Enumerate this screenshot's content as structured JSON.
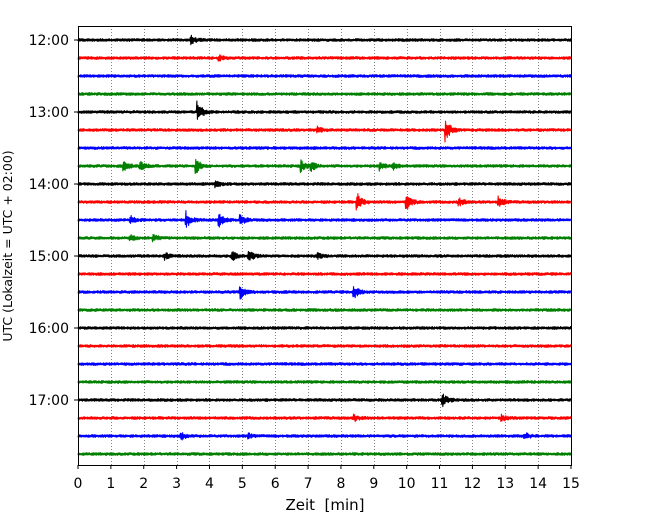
{
  "chart_data": {
    "type": "line",
    "subtype": "helicorder",
    "title": "",
    "xlabel": "Zeit  [min]",
    "ylabel": "UTC (Lokalzeit = UTC + 02:00)",
    "xlim": [
      0,
      15
    ],
    "x_ticks": [
      0,
      1,
      2,
      3,
      4,
      5,
      6,
      7,
      8,
      9,
      10,
      11,
      12,
      13,
      14,
      15
    ],
    "x_grid": "dotted vertical lines at each minute",
    "y_tick_labels": [
      "12:00",
      "13:00",
      "14:00",
      "15:00",
      "16:00",
      "17:00"
    ],
    "trace_interval_minutes": 15,
    "trace_color_cycle": [
      "#000000",
      "#ff0000",
      "#0000ff",
      "#008000"
    ],
    "traces": [
      {
        "start": "12:00",
        "color": "#000000",
        "events": [
          {
            "t": 3.45,
            "amp": 0.7
          }
        ]
      },
      {
        "start": "12:15",
        "color": "#ff0000",
        "events": [
          {
            "t": 4.3,
            "amp": 0.5
          }
        ]
      },
      {
        "start": "12:30",
        "color": "#0000ff",
        "events": []
      },
      {
        "start": "12:45",
        "color": "#008000",
        "events": []
      },
      {
        "start": "13:00",
        "color": "#000000",
        "events": [
          {
            "t": 3.65,
            "amp": 2.2
          }
        ]
      },
      {
        "start": "13:15",
        "color": "#ff0000",
        "events": [
          {
            "t": 7.3,
            "amp": 0.6
          },
          {
            "t": 11.2,
            "amp": 2.2
          }
        ]
      },
      {
        "start": "13:30",
        "color": "#0000ff",
        "events": []
      },
      {
        "start": "13:45",
        "color": "#008000",
        "events": [
          {
            "t": 1.4,
            "amp": 1.0
          },
          {
            "t": 1.9,
            "amp": 0.9
          },
          {
            "t": 3.6,
            "amp": 1.4
          },
          {
            "t": 6.8,
            "amp": 1.1
          },
          {
            "t": 7.1,
            "amp": 0.9
          },
          {
            "t": 9.2,
            "amp": 0.8
          },
          {
            "t": 9.6,
            "amp": 0.7
          }
        ]
      },
      {
        "start": "14:00",
        "color": "#000000",
        "events": [
          {
            "t": 4.2,
            "amp": 0.5
          }
        ]
      },
      {
        "start": "14:15",
        "color": "#ff0000",
        "events": [
          {
            "t": 8.5,
            "amp": 1.6
          },
          {
            "t": 10.0,
            "amp": 1.7
          },
          {
            "t": 11.6,
            "amp": 0.8
          },
          {
            "t": 12.8,
            "amp": 1.1
          }
        ]
      },
      {
        "start": "14:30",
        "color": "#0000ff",
        "events": [
          {
            "t": 1.6,
            "amp": 0.8
          },
          {
            "t": 3.3,
            "amp": 1.6
          },
          {
            "t": 4.3,
            "amp": 1.3
          },
          {
            "t": 4.95,
            "amp": 1.0
          }
        ]
      },
      {
        "start": "14:45",
        "color": "#008000",
        "events": [
          {
            "t": 1.6,
            "amp": 0.6
          },
          {
            "t": 2.3,
            "amp": 0.6
          }
        ]
      },
      {
        "start": "15:00",
        "color": "#000000",
        "events": [
          {
            "t": 2.65,
            "amp": 0.7
          },
          {
            "t": 4.7,
            "amp": 0.9
          },
          {
            "t": 5.2,
            "amp": 1.2
          },
          {
            "t": 7.3,
            "amp": 0.5
          }
        ]
      },
      {
        "start": "15:15",
        "color": "#ff0000",
        "events": []
      },
      {
        "start": "15:30",
        "color": "#0000ff",
        "events": [
          {
            "t": 4.95,
            "amp": 1.3
          },
          {
            "t": 8.4,
            "amp": 1.2
          }
        ]
      },
      {
        "start": "15:45",
        "color": "#008000",
        "events": []
      },
      {
        "start": "16:00",
        "color": "#000000",
        "events": []
      },
      {
        "start": "16:15",
        "color": "#ff0000",
        "events": []
      },
      {
        "start": "16:30",
        "color": "#0000ff",
        "events": []
      },
      {
        "start": "16:45",
        "color": "#008000",
        "events": []
      },
      {
        "start": "17:00",
        "color": "#000000",
        "events": [
          {
            "t": 11.1,
            "amp": 1.2
          }
        ]
      },
      {
        "start": "17:15",
        "color": "#ff0000",
        "events": [
          {
            "t": 8.4,
            "amp": 0.6
          },
          {
            "t": 12.9,
            "amp": 0.5
          }
        ]
      },
      {
        "start": "17:30",
        "color": "#0000ff",
        "events": [
          {
            "t": 3.15,
            "amp": 0.6
          },
          {
            "t": 5.2,
            "amp": 0.4
          },
          {
            "t": 13.6,
            "amp": 0.6
          }
        ]
      },
      {
        "start": "17:45",
        "color": "#008000",
        "events": []
      }
    ]
  }
}
